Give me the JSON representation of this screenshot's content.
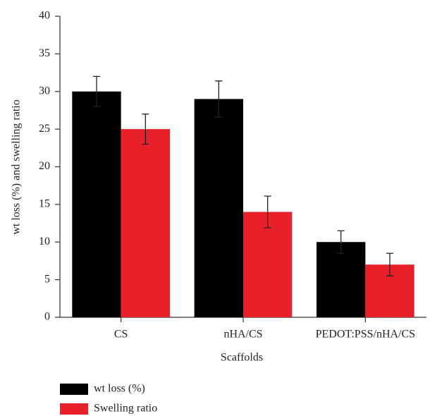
{
  "chart_data": {
    "type": "bar",
    "x_label": "Scaffolds",
    "y_label": "wt loss (%) and swelling ratio",
    "categories": [
      "CS",
      "nHA/CS",
      "PEDOT:PSS/nHA/CS"
    ],
    "series": [
      {
        "name": "wt loss (%)",
        "color": "#000000",
        "values": [
          30,
          29,
          10
        ],
        "errors": [
          2,
          2.4,
          1.5
        ]
      },
      {
        "name": "Swelling ratio",
        "color": "#e8202a",
        "values": [
          25,
          14,
          7
        ],
        "errors": [
          2,
          2.1,
          1.5
        ]
      }
    ],
    "ylim": [
      0,
      40
    ],
    "yticks": [
      0,
      5,
      10,
      15,
      20,
      25,
      30,
      35,
      40
    ],
    "grid": false
  }
}
